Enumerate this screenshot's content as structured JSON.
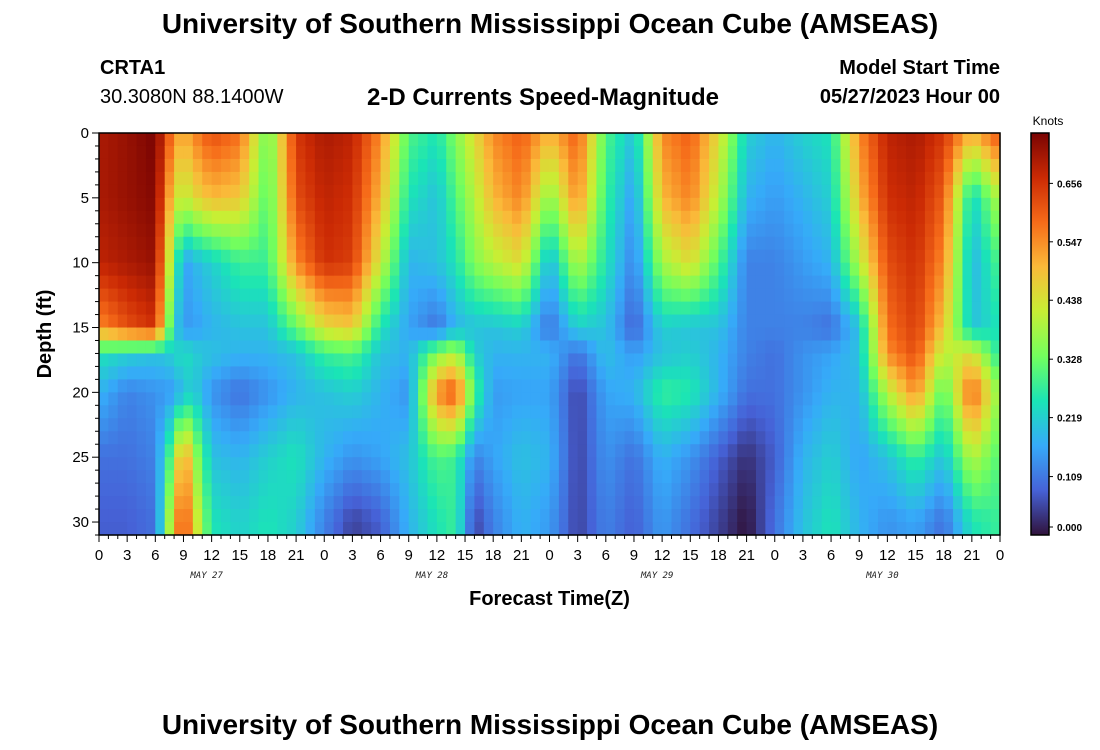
{
  "header": {
    "title": "University of Southern Mississippi Ocean Cube (AMSEAS)",
    "station_id": "CRTA1",
    "station_coords": "30.3080N  88.1400W",
    "subtitle": "2-D Currents Speed-Magnitude",
    "model_start_label": "Model Start Time",
    "model_start_value": "05/27/2023 Hour 00"
  },
  "footer": {
    "title": "University of Southern Mississippi Ocean Cube (AMSEAS)"
  },
  "chart_data": {
    "type": "heatmap",
    "title": "2-D Currents Speed-Magnitude",
    "xlabel": "Forecast Time(Z)",
    "ylabel": "Depth (ft)",
    "x_unit": "hours from 05/27/2023 00Z",
    "xlim": [
      0,
      96
    ],
    "ylim": [
      0,
      31
    ],
    "y_inverted": true,
    "x_tick_labels": [
      "0",
      "3",
      "6",
      "9",
      "12",
      "15",
      "18",
      "21",
      "0",
      "3",
      "6",
      "9",
      "12",
      "15",
      "18",
      "21",
      "0",
      "3",
      "6",
      "9",
      "12",
      "15",
      "18",
      "21",
      "0",
      "3",
      "6",
      "9",
      "12",
      "15",
      "18",
      "21",
      "0"
    ],
    "y_ticks": [
      0,
      5,
      10,
      15,
      20,
      25,
      30
    ],
    "day_labels": [
      {
        "label": "MAY 27",
        "hour": 12
      },
      {
        "label": "MAY 28",
        "hour": 36
      },
      {
        "label": "MAY 29",
        "hour": 60
      },
      {
        "label": "MAY 30",
        "hour": 84
      }
    ],
    "colorbar": {
      "unit": "Knots",
      "tick_labels": [
        "0.000",
        "0.109",
        "0.219",
        "0.328",
        "0.438",
        "0.547",
        "0.656"
      ],
      "ticks": [
        0.0,
        0.109,
        0.219,
        0.328,
        0.438,
        0.547,
        0.656
      ],
      "max": 0.75,
      "colors": [
        "#30123b",
        "#4662d7",
        "#36aaf9",
        "#1ae4b6",
        "#72fe5e",
        "#c7ef34",
        "#faba39",
        "#f66b19",
        "#cb2a04",
        "#7a0403"
      ]
    },
    "field": {
      "x_hours": [
        0,
        3,
        6,
        8,
        9,
        10,
        12,
        15,
        18,
        21,
        24,
        27,
        30,
        33,
        36,
        38,
        40,
        42,
        45,
        48,
        51,
        54,
        57,
        60,
        63,
        66,
        69,
        72,
        75,
        78,
        81,
        84,
        87,
        90,
        93,
        96
      ],
      "depths_ft": [
        0,
        5,
        10,
        15,
        17,
        20,
        25,
        30
      ],
      "speed_knots_by_column": [
        [
          0.7,
          0.7,
          0.68,
          0.55,
          0.25,
          0.18,
          0.1,
          0.08
        ],
        [
          0.72,
          0.72,
          0.7,
          0.62,
          0.22,
          0.12,
          0.1,
          0.08
        ],
        [
          0.75,
          0.74,
          0.72,
          0.66,
          0.2,
          0.14,
          0.12,
          0.1
        ],
        [
          0.55,
          0.45,
          0.32,
          0.22,
          0.22,
          0.15,
          0.35,
          0.48
        ],
        [
          0.5,
          0.4,
          0.15,
          0.15,
          0.25,
          0.2,
          0.58,
          0.65
        ],
        [
          0.55,
          0.45,
          0.18,
          0.15,
          0.22,
          0.22,
          0.4,
          0.48
        ],
        [
          0.62,
          0.5,
          0.22,
          0.18,
          0.2,
          0.14,
          0.2,
          0.25
        ],
        [
          0.58,
          0.48,
          0.28,
          0.2,
          0.18,
          0.1,
          0.18,
          0.22
        ],
        [
          0.32,
          0.3,
          0.28,
          0.2,
          0.18,
          0.14,
          0.22,
          0.25
        ],
        [
          0.65,
          0.62,
          0.55,
          0.32,
          0.2,
          0.18,
          0.25,
          0.22
        ],
        [
          0.7,
          0.68,
          0.66,
          0.45,
          0.28,
          0.2,
          0.18,
          0.12
        ],
        [
          0.68,
          0.66,
          0.64,
          0.48,
          0.3,
          0.22,
          0.14,
          0.05
        ],
        [
          0.55,
          0.5,
          0.42,
          0.25,
          0.2,
          0.18,
          0.16,
          0.08
        ],
        [
          0.3,
          0.25,
          0.18,
          0.16,
          0.18,
          0.14,
          0.2,
          0.18
        ],
        [
          0.25,
          0.2,
          0.2,
          0.1,
          0.35,
          0.55,
          0.3,
          0.25
        ],
        [
          0.35,
          0.3,
          0.25,
          0.18,
          0.4,
          0.62,
          0.28,
          0.28
        ],
        [
          0.45,
          0.4,
          0.35,
          0.2,
          0.22,
          0.3,
          0.12,
          0.05
        ],
        [
          0.55,
          0.5,
          0.4,
          0.2,
          0.18,
          0.15,
          0.16,
          0.12
        ],
        [
          0.6,
          0.56,
          0.45,
          0.22,
          0.18,
          0.16,
          0.2,
          0.18
        ],
        [
          0.5,
          0.35,
          0.18,
          0.1,
          0.18,
          0.16,
          0.18,
          0.15
        ],
        [
          0.6,
          0.55,
          0.4,
          0.22,
          0.1,
          0.05,
          0.05,
          0.05
        ],
        [
          0.3,
          0.28,
          0.25,
          0.2,
          0.2,
          0.16,
          0.14,
          0.12
        ],
        [
          0.2,
          0.15,
          0.12,
          0.08,
          0.15,
          0.18,
          0.1,
          0.08
        ],
        [
          0.55,
          0.5,
          0.38,
          0.22,
          0.2,
          0.28,
          0.18,
          0.15
        ],
        [
          0.6,
          0.56,
          0.45,
          0.2,
          0.22,
          0.26,
          0.14,
          0.1
        ],
        [
          0.45,
          0.4,
          0.3,
          0.2,
          0.18,
          0.18,
          0.08,
          0.05
        ],
        [
          0.22,
          0.18,
          0.12,
          0.12,
          0.12,
          0.1,
          0.03,
          0.0
        ],
        [
          0.18,
          0.15,
          0.12,
          0.12,
          0.1,
          0.1,
          0.08,
          0.1
        ],
        [
          0.22,
          0.18,
          0.15,
          0.12,
          0.14,
          0.14,
          0.18,
          0.2
        ],
        [
          0.25,
          0.22,
          0.18,
          0.1,
          0.16,
          0.18,
          0.22,
          0.25
        ],
        [
          0.55,
          0.5,
          0.4,
          0.2,
          0.2,
          0.18,
          0.16,
          0.18
        ],
        [
          0.68,
          0.66,
          0.62,
          0.58,
          0.55,
          0.4,
          0.2,
          0.14
        ],
        [
          0.7,
          0.68,
          0.66,
          0.64,
          0.62,
          0.55,
          0.28,
          0.16
        ],
        [
          0.65,
          0.6,
          0.55,
          0.48,
          0.4,
          0.3,
          0.2,
          0.1
        ],
        [
          0.5,
          0.22,
          0.18,
          0.2,
          0.45,
          0.6,
          0.4,
          0.25
        ],
        [
          0.62,
          0.4,
          0.3,
          0.25,
          0.25,
          0.35,
          0.3,
          0.28
        ]
      ]
    }
  }
}
